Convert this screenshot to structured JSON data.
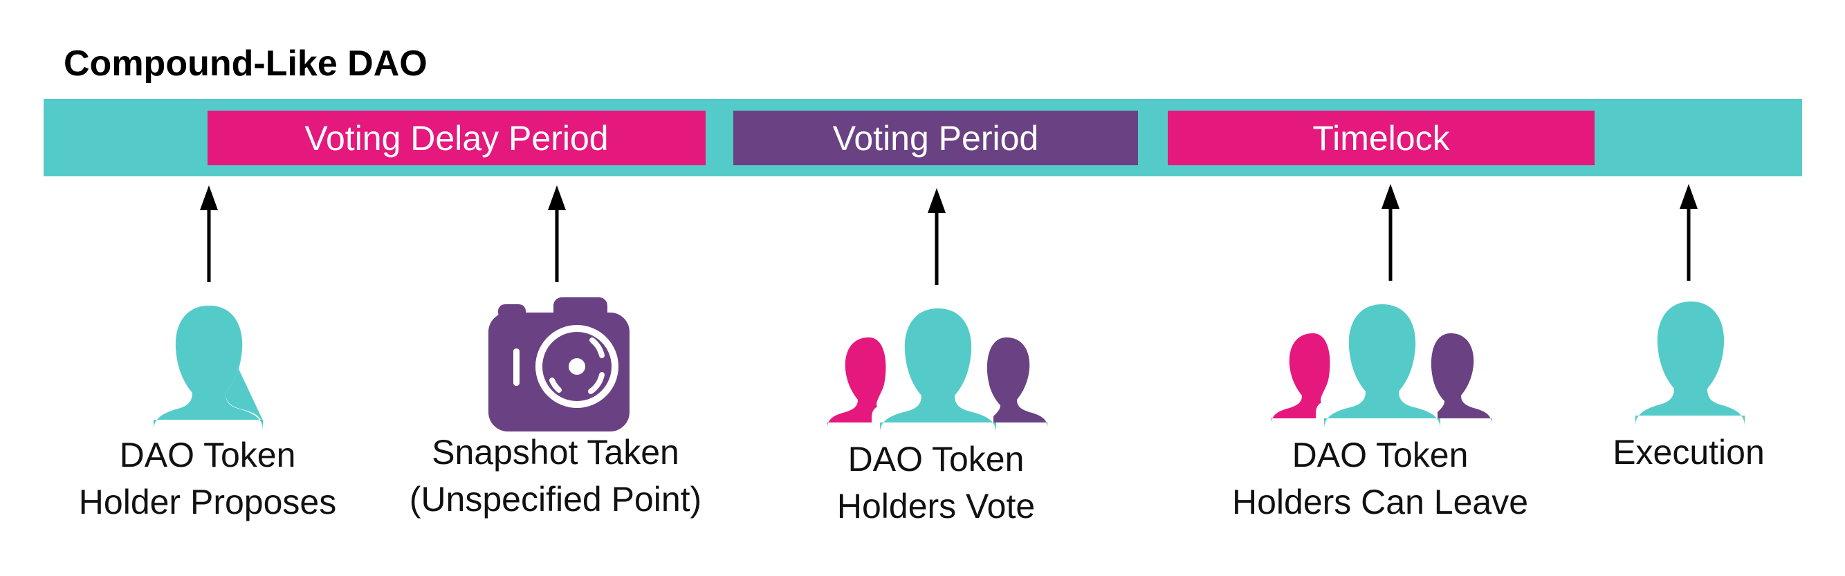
{
  "title": "Compound-Like DAO",
  "colors": {
    "timeline": "#55CBC9",
    "pink": "#E5187D",
    "purple": "#6A4283",
    "teal": "#55CBC9",
    "arrow": "#000000"
  },
  "phases": [
    {
      "label": "Voting Delay Period",
      "color": "#E5187D"
    },
    {
      "label": "Voting Period",
      "color": "#6A4283"
    },
    {
      "label": "Timelock",
      "color": "#E5187D"
    }
  ],
  "events": [
    {
      "icon": "person-icon",
      "lines": [
        "DAO Token",
        "Holder Proposes"
      ]
    },
    {
      "icon": "camera-icon",
      "lines": [
        "Snapshot Taken",
        "(Unspecified Point)"
      ]
    },
    {
      "icon": "group-icon",
      "lines": [
        "DAO Token",
        "Holders Vote"
      ]
    },
    {
      "icon": "group-icon",
      "lines": [
        "DAO Token",
        "Holders Can Leave"
      ]
    },
    {
      "icon": "person-icon",
      "lines": [
        "Execution"
      ]
    }
  ]
}
